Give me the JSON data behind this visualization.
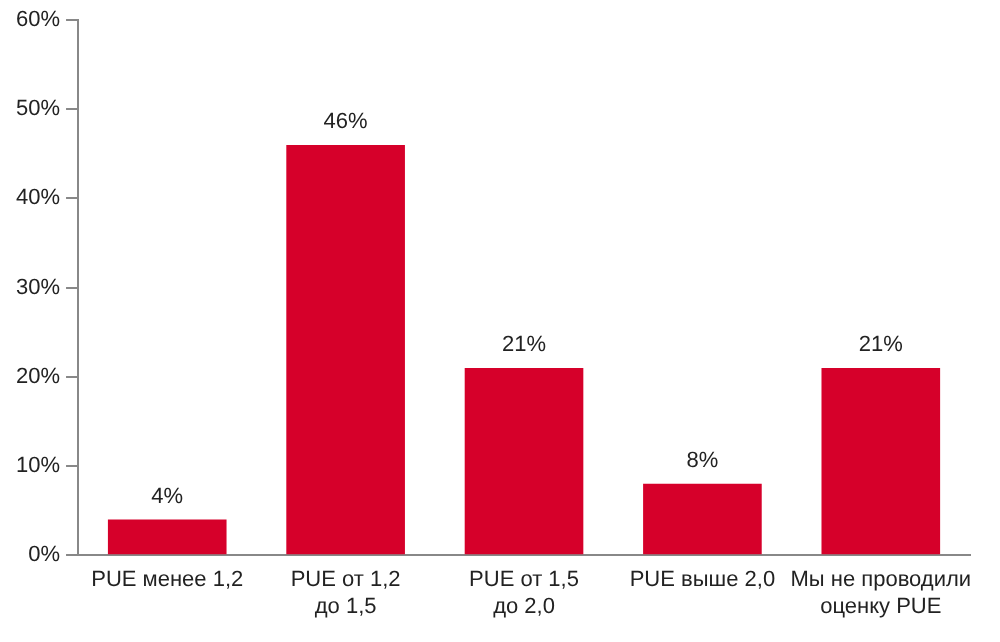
{
  "chart_data": {
    "type": "bar",
    "categories": [
      "PUE менее 1,2",
      "PUE от 1,2\nдо 1,5",
      "PUE от 1,5\nдо 2,0",
      "PUE выше 2,0",
      "Мы не проводили\nоценку PUE"
    ],
    "values": [
      4,
      46,
      21,
      8,
      21
    ],
    "color": "#d6002a",
    "ylim": [
      0,
      60
    ],
    "yticks": [
      {
        "value": 0,
        "label": "0%"
      },
      {
        "value": 10,
        "label": "10%"
      },
      {
        "value": 20,
        "label": "20%"
      },
      {
        "value": 30,
        "label": "30%"
      },
      {
        "value": 40,
        "label": "40%"
      },
      {
        "value": 50,
        "label": "50%"
      },
      {
        "value": 60,
        "label": "60%"
      }
    ],
    "value_labels": [
      "4%",
      "46%",
      "21%",
      "8%",
      "21%"
    ],
    "grid": false,
    "legend": false
  }
}
